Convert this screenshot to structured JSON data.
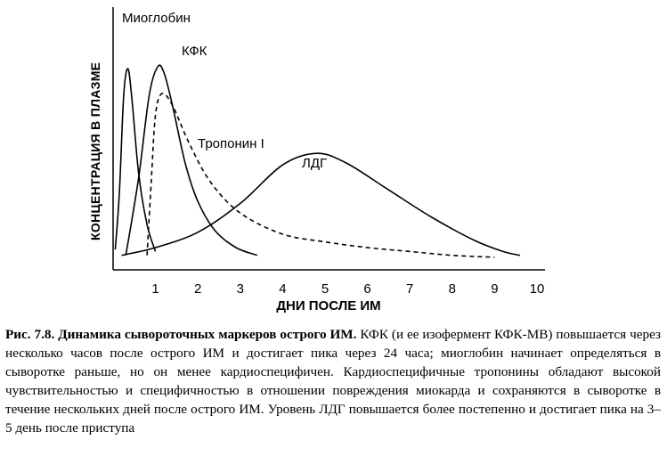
{
  "chart_data": {
    "type": "line",
    "xlabel": "ДНИ ПОСЛЕ ИМ",
    "ylabel": "КОНЦЕНТРАЦИЯ В ПЛАЗМЕ",
    "xlim": [
      0,
      10
    ],
    "ylim": [
      0,
      1
    ],
    "x_ticks": [
      "1",
      "2",
      "3",
      "4",
      "5",
      "6",
      "7",
      "8",
      "9",
      "10"
    ],
    "grid": false,
    "series": [
      {
        "name": "Миоглобин",
        "style": "solid",
        "points": [
          [
            0.05,
            0.05
          ],
          [
            0.15,
            0.35
          ],
          [
            0.25,
            0.85
          ],
          [
            0.35,
            0.99
          ],
          [
            0.45,
            0.82
          ],
          [
            0.6,
            0.45
          ],
          [
            0.8,
            0.18
          ],
          [
            1.0,
            0.04
          ]
        ]
      },
      {
        "name": "КФК",
        "style": "solid",
        "points": [
          [
            0.3,
            0.02
          ],
          [
            0.6,
            0.42
          ],
          [
            0.85,
            0.85
          ],
          [
            1.05,
            1.0
          ],
          [
            1.2,
            0.97
          ],
          [
            1.4,
            0.8
          ],
          [
            1.7,
            0.5
          ],
          [
            2.0,
            0.3
          ],
          [
            2.4,
            0.15
          ],
          [
            2.9,
            0.06
          ],
          [
            3.4,
            0.02
          ]
        ]
      },
      {
        "name": "Тропонин I",
        "style": "dashed",
        "points": [
          [
            0.8,
            0.02
          ],
          [
            0.9,
            0.4
          ],
          [
            1.0,
            0.75
          ],
          [
            1.15,
            0.86
          ],
          [
            1.4,
            0.8
          ],
          [
            1.8,
            0.6
          ],
          [
            2.3,
            0.4
          ],
          [
            3.0,
            0.24
          ],
          [
            4.0,
            0.13
          ],
          [
            5.0,
            0.09
          ],
          [
            6.0,
            0.06
          ],
          [
            7.0,
            0.04
          ],
          [
            8.0,
            0.02
          ],
          [
            9.0,
            0.01
          ]
        ]
      },
      {
        "name": "ЛДГ",
        "style": "solid",
        "points": [
          [
            0.2,
            0.02
          ],
          [
            1.0,
            0.06
          ],
          [
            2.0,
            0.14
          ],
          [
            3.0,
            0.29
          ],
          [
            4.0,
            0.49
          ],
          [
            4.8,
            0.55
          ],
          [
            5.5,
            0.5
          ],
          [
            6.5,
            0.36
          ],
          [
            7.5,
            0.22
          ],
          [
            8.5,
            0.1
          ],
          [
            9.2,
            0.04
          ],
          [
            9.6,
            0.02
          ]
        ]
      }
    ]
  },
  "caption": {
    "title": "Рис. 7.8. Динамика сывороточных маркеров острого ИМ.",
    "body": "КФК (и ее изофермент КФК-МВ) повышается через несколько часов после острого ИМ и достигает пика через 24 часа; миоглобин начинает определяться в сыворотке раньше, но он менее кардиоспецифичен. Кардиоспецифичные тропонины обладают высокой чувствительностью и специфичностью в отношении повреждения миокарда и сохраняются в сыворотке в течение нескольких дней после острого ИМ. Уровень ЛДГ повышается более постепенно и достигает пика на 3–5 день после приступа"
  }
}
